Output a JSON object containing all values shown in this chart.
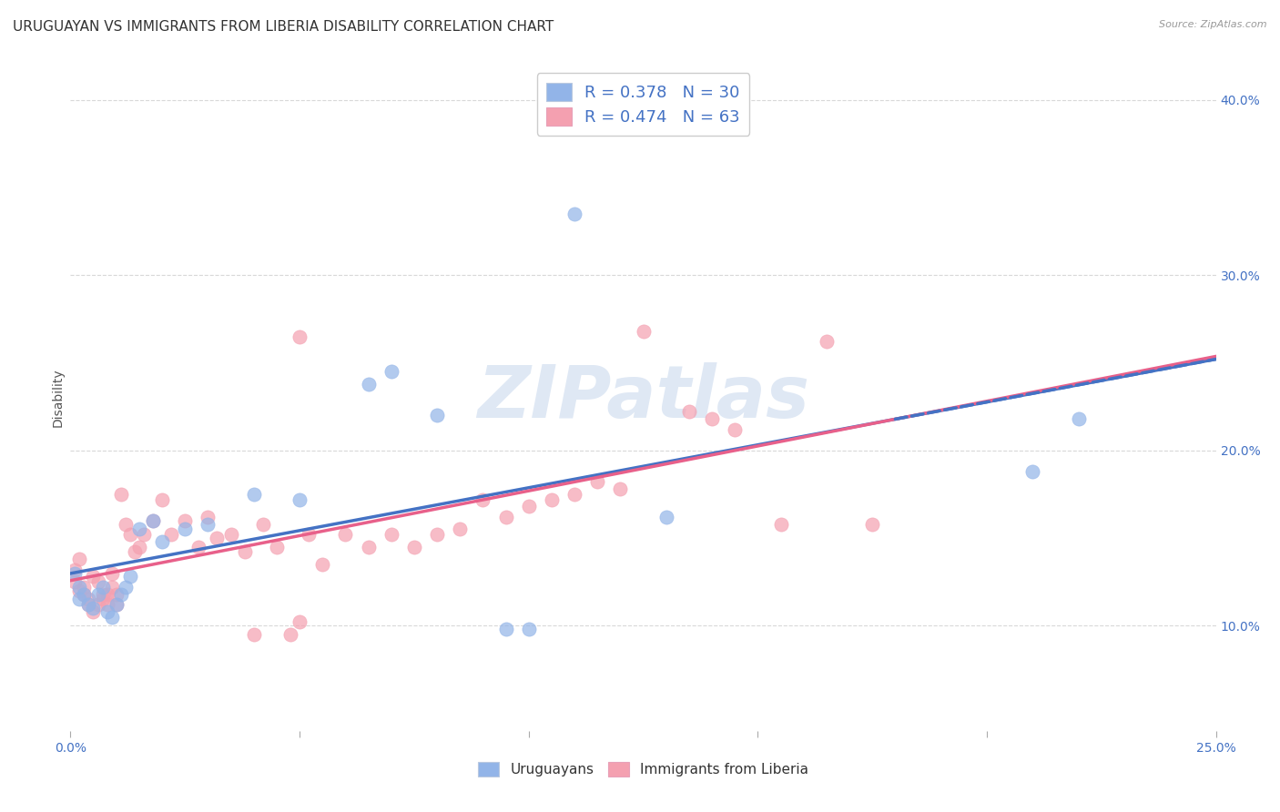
{
  "title": "URUGUAYAN VS IMMIGRANTS FROM LIBERIA DISABILITY CORRELATION CHART",
  "source": "Source: ZipAtlas.com",
  "ylabel": "Disability",
  "xlabel": "",
  "xmin": 0.0,
  "xmax": 0.25,
  "ymin": 0.04,
  "ymax": 0.42,
  "yticks": [
    0.1,
    0.2,
    0.3,
    0.4
  ],
  "ytick_labels": [
    "10.0%",
    "20.0%",
    "30.0%",
    "40.0%"
  ],
  "xticks": [
    0.0,
    0.05,
    0.1,
    0.15,
    0.2,
    0.25
  ],
  "xtick_labels": [
    "0.0%",
    "",
    "",
    "",
    "",
    "25.0%"
  ],
  "uruguayan_color": "#92b4e8",
  "liberia_color": "#f4a0b0",
  "uruguayan_line_color": "#4472c4",
  "liberia_line_color": "#e8608a",
  "R_uruguayan": 0.378,
  "N_uruguayan": 30,
  "R_liberia": 0.474,
  "N_liberia": 63,
  "watermark": "ZIPatlas",
  "legend_label_1": "Uruguayans",
  "legend_label_2": "Immigrants from Liberia",
  "uruguayan_x": [
    0.001,
    0.002,
    0.002,
    0.003,
    0.004,
    0.005,
    0.006,
    0.007,
    0.008,
    0.009,
    0.01,
    0.011,
    0.012,
    0.013,
    0.015,
    0.018,
    0.02,
    0.025,
    0.03,
    0.04,
    0.05,
    0.065,
    0.07,
    0.08,
    0.095,
    0.1,
    0.11,
    0.13,
    0.21,
    0.22
  ],
  "uruguayan_y": [
    0.13,
    0.122,
    0.115,
    0.118,
    0.112,
    0.11,
    0.118,
    0.122,
    0.108,
    0.105,
    0.112,
    0.118,
    0.122,
    0.128,
    0.155,
    0.16,
    0.148,
    0.155,
    0.158,
    0.175,
    0.172,
    0.238,
    0.245,
    0.22,
    0.098,
    0.098,
    0.335,
    0.162,
    0.188,
    0.218
  ],
  "liberia_x": [
    0.001,
    0.001,
    0.002,
    0.002,
    0.003,
    0.003,
    0.004,
    0.004,
    0.005,
    0.005,
    0.006,
    0.006,
    0.007,
    0.007,
    0.008,
    0.008,
    0.009,
    0.009,
    0.01,
    0.01,
    0.011,
    0.012,
    0.013,
    0.014,
    0.015,
    0.016,
    0.018,
    0.02,
    0.022,
    0.025,
    0.028,
    0.03,
    0.032,
    0.035,
    0.038,
    0.04,
    0.042,
    0.045,
    0.048,
    0.05,
    0.052,
    0.055,
    0.06,
    0.065,
    0.07,
    0.075,
    0.08,
    0.085,
    0.09,
    0.095,
    0.1,
    0.105,
    0.11,
    0.115,
    0.12,
    0.125,
    0.135,
    0.14,
    0.145,
    0.155,
    0.165,
    0.175,
    0.05
  ],
  "liberia_y": [
    0.132,
    0.125,
    0.138,
    0.12,
    0.118,
    0.122,
    0.112,
    0.115,
    0.128,
    0.108,
    0.112,
    0.125,
    0.115,
    0.118,
    0.118,
    0.112,
    0.122,
    0.13,
    0.112,
    0.118,
    0.175,
    0.158,
    0.152,
    0.142,
    0.145,
    0.152,
    0.16,
    0.172,
    0.152,
    0.16,
    0.145,
    0.162,
    0.15,
    0.152,
    0.142,
    0.095,
    0.158,
    0.145,
    0.095,
    0.102,
    0.152,
    0.135,
    0.152,
    0.145,
    0.152,
    0.145,
    0.152,
    0.155,
    0.172,
    0.162,
    0.168,
    0.172,
    0.175,
    0.182,
    0.178,
    0.268,
    0.222,
    0.218,
    0.212,
    0.158,
    0.262,
    0.158,
    0.265
  ],
  "background_color": "#ffffff",
  "grid_color": "#d8d8d8",
  "title_fontsize": 11,
  "axis_label_fontsize": 10,
  "tick_fontsize": 10,
  "legend_fontsize": 13
}
